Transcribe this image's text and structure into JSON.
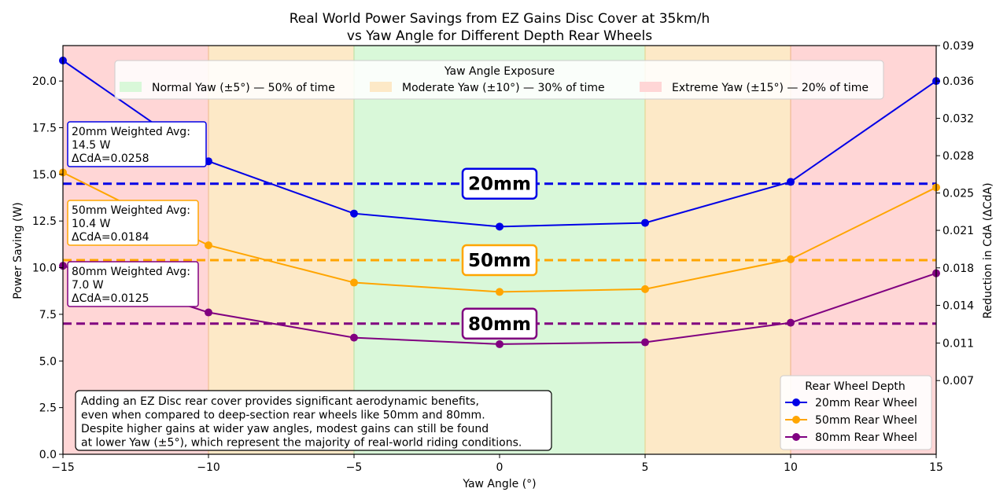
{
  "chart_data": {
    "type": "line",
    "title_line1": "Real World Power Savings from EZ Gains Disc Cover at 35km/h",
    "title_line2": "vs Yaw Angle for Different Depth Rear Wheels",
    "xlabel": "Yaw Angle (°)",
    "ylabel": "Power Saving (W)",
    "ylabel_right": "Reduction in CdA (ΔCdA)",
    "xlim": [
      -15,
      15
    ],
    "ylim": [
      0,
      21.9
    ],
    "x_ticks": [
      -15,
      -10,
      -5,
      0,
      5,
      10,
      15
    ],
    "x_tick_labels": [
      "−15",
      "−10",
      "−5",
      "0",
      "5",
      "10",
      "15"
    ],
    "y_ticks": [
      0,
      2.5,
      5,
      7.5,
      10,
      12.5,
      15,
      17.5,
      20
    ],
    "y_tick_labels": [
      "0.0",
      "2.5",
      "5.0",
      "7.5",
      "10.0",
      "12.5",
      "15.0",
      "17.5",
      "20.0"
    ],
    "right_ticks": [
      {
        "y": 3.95,
        "label": "0.007"
      },
      {
        "y": 5.96,
        "label": "0.011"
      },
      {
        "y": 7.98,
        "label": "0.014"
      },
      {
        "y": 9.99,
        "label": "0.018"
      },
      {
        "y": 12.0,
        "label": "0.021"
      },
      {
        "y": 14.0,
        "label": "0.025"
      },
      {
        "y": 16.0,
        "label": "0.028"
      },
      {
        "y": 18.0,
        "label": "0.032"
      },
      {
        "y": 20.0,
        "label": "0.036"
      },
      {
        "y": 21.9,
        "label": "0.039"
      }
    ],
    "x": [
      -15,
      -10,
      -5,
      0,
      5,
      10,
      15
    ],
    "series": [
      {
        "name": "20mm Rear Wheel",
        "color": "#0000e6",
        "values": [
          21.1,
          15.7,
          12.9,
          12.2,
          12.4,
          14.6,
          20.0
        ]
      },
      {
        "name": "50mm Rear Wheel",
        "color": "#ffa500",
        "values": [
          15.1,
          11.2,
          9.2,
          8.7,
          8.85,
          10.45,
          14.3
        ]
      },
      {
        "name": "80mm Rear Wheel",
        "color": "#800080",
        "values": [
          10.1,
          7.6,
          6.25,
          5.9,
          6.0,
          7.05,
          9.7
        ]
      }
    ],
    "averages": [
      {
        "label": "20mm",
        "value": 14.5,
        "color": "#0000e6",
        "box_lines": [
          "20mm Weighted Avg:",
          "14.5 W",
          "ΔCdA=0.0258"
        ]
      },
      {
        "label": "50mm",
        "value": 10.4,
        "color": "#ffa500",
        "box_lines": [
          "50mm Weighted Avg:",
          "10.4 W",
          "ΔCdA=0.0184"
        ]
      },
      {
        "label": "80mm",
        "value": 7.0,
        "color": "#800080",
        "box_lines": [
          "80mm Weighted Avg:",
          "7.0 W",
          "ΔCdA=0.0125"
        ]
      }
    ],
    "yaw_zones": [
      {
        "from": -15,
        "to": -10,
        "color": "#ffd6d6"
      },
      {
        "from": -10,
        "to": -5,
        "color": "#fde9c7"
      },
      {
        "from": -5,
        "to": 5,
        "color": "#d9f8d9"
      },
      {
        "from": 5,
        "to": 10,
        "color": "#fde9c7"
      },
      {
        "from": 10,
        "to": 15,
        "color": "#ffd6d6"
      }
    ],
    "zone_legend": {
      "title": "Yaw Angle Exposure",
      "entries": [
        {
          "label": "Normal Yaw (±5°) — 50% of time",
          "color": "#d9f8d9"
        },
        {
          "label": "Moderate Yaw (±10°) — 30% of time",
          "color": "#fde9c7"
        },
        {
          "label": "Extreme Yaw (±15°) — 20% of time",
          "color": "#ffd6d6"
        }
      ]
    },
    "series_legend_title": "Rear Wheel Depth",
    "legend_placement": "lower right",
    "note_lines": [
      "Adding an EZ Disc rear cover provides significant aerodynamic benefits,",
      "even when compared to deep-section rear wheels like 50mm and 80mm.",
      "Despite higher gains at wider yaw angles, modest gains can still be found",
      "at lower Yaw (±5°), which represent the majority of real-world riding conditions."
    ],
    "grid": false
  }
}
